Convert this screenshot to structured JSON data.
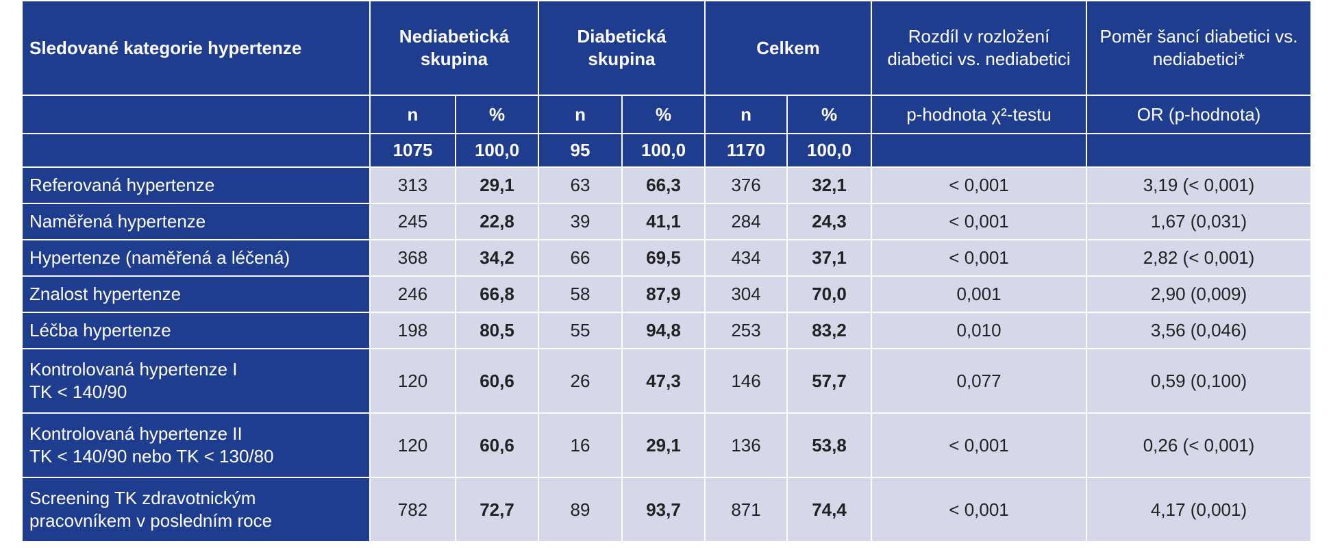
{
  "header": {
    "columns": [
      "Sledované kategorie hypertenze",
      "Nediabetická skupina",
      "Diabetická skupina",
      "Celkem",
      "Rozdíl v rozložení diabetici vs. nediabetici",
      "Poměr šancí diabetici vs. nediabetici*"
    ]
  },
  "subheader": [
    "n",
    "%",
    "n",
    "%",
    "n",
    "%",
    "p-hodnota χ²-testu",
    "OR (p-hodnota)"
  ],
  "totals": [
    "1075",
    "100,0",
    "95",
    "100,0",
    "1170",
    "100,0"
  ],
  "rows": [
    {
      "label": [
        "Referovaná hypertenze"
      ],
      "cells": [
        "313",
        "29,1",
        "63",
        "66,3",
        "376",
        "32,1",
        "< 0,001",
        "3,19 (< 0,001)"
      ]
    },
    {
      "label": [
        "Naměřená hypertenze"
      ],
      "cells": [
        "245",
        "22,8",
        "39",
        "41,1",
        "284",
        "24,3",
        "< 0,001",
        "1,67 (0,031)"
      ]
    },
    {
      "label": [
        "Hypertenze (naměřená a léčená)"
      ],
      "cells": [
        "368",
        "34,2",
        "66",
        "69,5",
        "434",
        "37,1",
        "< 0,001",
        "2,82 (< 0,001)"
      ]
    },
    {
      "label": [
        "Znalost hypertenze"
      ],
      "cells": [
        "246",
        "66,8",
        "58",
        "87,9",
        "304",
        "70,0",
        "0,001",
        "2,90 (0,009)"
      ]
    },
    {
      "label": [
        "Léčba hypertenze"
      ],
      "cells": [
        "198",
        "80,5",
        "55",
        "94,8",
        "253",
        "83,2",
        "0,010",
        "3,56 (0,046)"
      ]
    },
    {
      "label": [
        "Kontrolovaná hypertenze I",
        "TK < 140/90"
      ],
      "cells": [
        "120",
        "60,6",
        "26",
        "47,3",
        "146",
        "57,7",
        "0,077",
        "0,59 (0,100)"
      ]
    },
    {
      "label": [
        "Kontrolovaná hypertenze II",
        "TK < 140/90 nebo TK < 130/80"
      ],
      "cells": [
        "120",
        "60,6",
        "16",
        "29,1",
        "136",
        "53,8",
        "< 0,001",
        "0,26 (< 0,001)"
      ]
    },
    {
      "label": [
        "Screening TK zdravotnickým",
        "pracovníkem v posledním roce"
      ],
      "cells": [
        "782",
        "72,7",
        "89",
        "93,7",
        "871",
        "74,4",
        "< 0,001",
        "4,17 (0,001)"
      ]
    }
  ]
}
